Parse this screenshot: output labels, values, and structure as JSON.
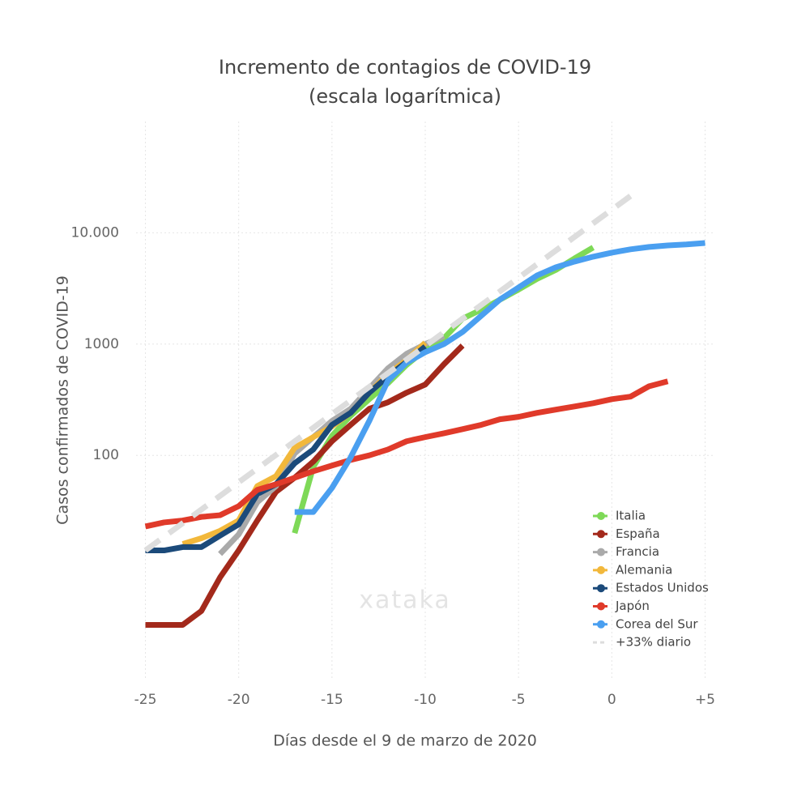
{
  "chart_data": {
    "type": "line",
    "title": "Incremento de contagios de COVID-19",
    "subtitle": "(escala logarítmica)",
    "x_label": "Días desde el 9 de marzo de 2020",
    "y_label": "Casos confirmados de COVID-19",
    "watermark": "xataka",
    "xlim": [
      -25.5,
      5.5
    ],
    "xticks": [
      -25,
      -20,
      -15,
      -10,
      -5,
      0,
      {
        "value": 5,
        "label": "+5"
      }
    ],
    "ylim": [
      1,
      100000
    ],
    "log_y": true,
    "yticks": [
      100,
      1000,
      {
        "value": 10000,
        "label": "10.000"
      }
    ],
    "grid": true,
    "legend": "lower right",
    "series": [
      {
        "name": "Italia",
        "color": "#7ed957",
        "x": [
          -17,
          -16,
          -15,
          -14,
          -13,
          -12,
          -11,
          -10,
          -9,
          -8,
          -7,
          -6,
          -5,
          -4,
          -3,
          -2,
          -1
        ],
        "values": [
          20,
          79,
          150,
          227,
          320,
          445,
          650,
          888,
          1128,
          1694,
          2036,
          2502,
          3089,
          3858,
          4636,
          5883,
          7375
        ]
      },
      {
        "name": "España",
        "color": "#a3291b",
        "x": [
          -25,
          -24,
          -23,
          -22,
          -21,
          -20,
          -19,
          -18,
          -17,
          -16,
          -15,
          -14,
          -13,
          -12,
          -11,
          -10,
          -9,
          -8
        ],
        "values": [
          3,
          3,
          3,
          4,
          8,
          14,
          26,
          47,
          63,
          88,
          134,
          188,
          262,
          300,
          366,
          433,
          658,
          970
        ]
      },
      {
        "name": "Francia",
        "color": "#aaaaaa",
        "x": [
          -21,
          -20,
          -19,
          -18,
          -17,
          -16,
          -15,
          -14,
          -13,
          -12,
          -11,
          -10,
          -9
        ],
        "values": [
          13,
          19.5,
          38,
          53,
          104,
          146,
          204,
          262,
          400,
          605,
          818,
          1000,
          1180
        ]
      },
      {
        "name": "Alemania",
        "color": "#f2b83b",
        "x": [
          -23,
          -22,
          -21,
          -20,
          -19,
          -18,
          -17,
          -16,
          -15,
          -14,
          -13,
          -12,
          -11,
          -10
        ],
        "values": [
          16,
          18,
          21,
          26,
          53,
          65,
          117,
          146,
          182,
          241,
          366,
          538,
          716,
          1030
        ]
      },
      {
        "name": "Estados Unidos",
        "color": "#1b4a7a",
        "x": [
          -25,
          -24,
          -23,
          -22,
          -21,
          -20,
          -19,
          -18,
          -17,
          -16,
          -15,
          -14,
          -13,
          -12,
          -11,
          -10
        ],
        "values": [
          14,
          14,
          15,
          15,
          19,
          24,
          45,
          55,
          85,
          113,
          188,
          241,
          366,
          512,
          692,
          950
        ]
      },
      {
        "name": "Japón",
        "color": "#e03a2a",
        "x": [
          -25,
          -24,
          -23,
          -22,
          -21,
          -20,
          -19,
          -18,
          -17,
          -16,
          -15,
          -14,
          -13,
          -12,
          -11,
          -10,
          -9,
          -8,
          -7,
          -6,
          -5,
          -4,
          -3,
          -2,
          -1,
          0,
          1,
          2,
          3
        ],
        "values": [
          23,
          25,
          26,
          28,
          29,
          35,
          49,
          55,
          63,
          72,
          81,
          91,
          100,
          113,
          134,
          146,
          158,
          172,
          188,
          211,
          222,
          241,
          258,
          275,
          294,
          320,
          337,
          418,
          463
        ]
      },
      {
        "name": "Corea del Sur",
        "color": "#4a9ff0",
        "x": [
          -17,
          -16,
          -15,
          -14,
          -13,
          -12,
          -11,
          -10,
          -9,
          -8,
          -7,
          -6,
          -5,
          -4,
          -3,
          -2,
          -1,
          0,
          1,
          2,
          3,
          4,
          5
        ],
        "values": [
          31,
          31,
          51,
          96,
          204,
          470,
          680,
          846,
          1000,
          1285,
          1797,
          2511,
          3225,
          4148,
          4900,
          5513,
          6100,
          6630,
          7100,
          7460,
          7700,
          7860,
          8100
        ]
      },
      {
        "name": "+33% diario",
        "color": "#dddddd",
        "dashed": true,
        "x": [
          -25,
          1
        ],
        "values": [
          14,
          21400
        ]
      }
    ]
  }
}
